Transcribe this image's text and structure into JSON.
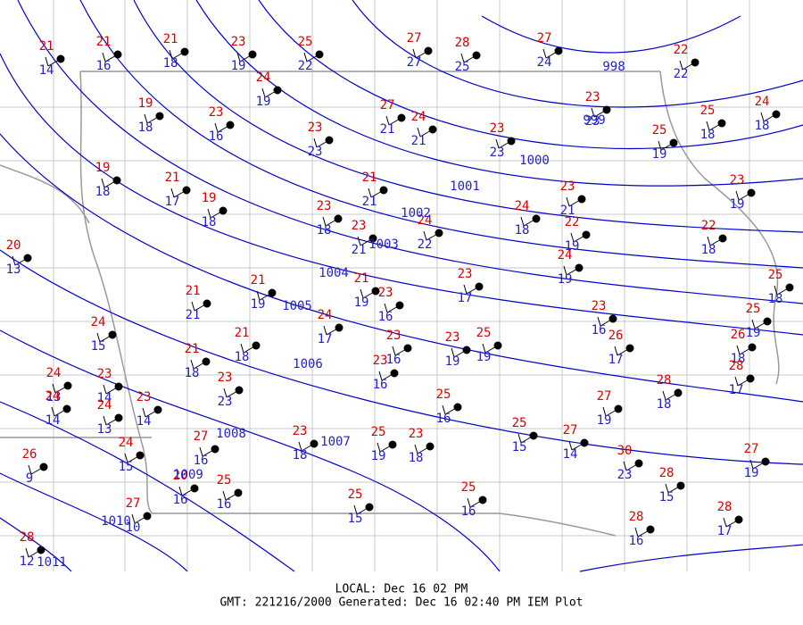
{
  "stations": [
    {
      "temp": 21,
      "dew": 14
    },
    {
      "temp": 21,
      "dew": 16
    },
    {
      "temp": 21,
      "dew": 18
    },
    {
      "temp": 23,
      "dew": 19
    },
    {
      "temp": 25,
      "dew": 22
    },
    {
      "temp": 27,
      "dew": 27
    },
    {
      "temp": 28,
      "dew": 25
    },
    {
      "temp": 27,
      "dew": 24
    },
    {
      "temp": 22,
      "dew": 22
    },
    {
      "temp": 24,
      "dew": 19
    },
    {
      "temp": 19,
      "dew": 18
    },
    {
      "temp": 23,
      "dew": 16
    },
    {
      "temp": 23,
      "dew": 23
    },
    {
      "temp": 27,
      "dew": 21
    },
    {
      "temp": 24,
      "dew": 21
    },
    {
      "temp": 23,
      "dew": 23
    },
    {
      "temp": 23,
      "dew": 23
    },
    {
      "temp": 25,
      "dew": 19
    },
    {
      "temp": 25,
      "dew": 18
    },
    {
      "temp": 24,
      "dew": 18
    },
    {
      "temp": 19,
      "dew": 18
    },
    {
      "temp": 21,
      "dew": 17
    },
    {
      "temp": 19,
      "dew": 18
    },
    {
      "temp": 21,
      "dew": 21
    },
    {
      "temp": 23,
      "dew": 21
    },
    {
      "temp": 23,
      "dew": 19
    },
    {
      "temp": 23,
      "dew": 18
    },
    {
      "temp": 23,
      "dew": 21
    },
    {
      "temp": 24,
      "dew": 22
    },
    {
      "temp": 24,
      "dew": 18
    },
    {
      "temp": 22,
      "dew": 19
    },
    {
      "temp": 22,
      "dew": 18
    },
    {
      "temp": 20,
      "dew": 13
    },
    {
      "temp": 24,
      "dew": 19
    },
    {
      "temp": 23,
      "dew": 17
    },
    {
      "temp": 21,
      "dew": 19
    },
    {
      "temp": 21,
      "dew": 21
    },
    {
      "temp": 21,
      "dew": 19
    },
    {
      "temp": 23,
      "dew": 16
    },
    {
      "temp": 25,
      "dew": 18
    },
    {
      "temp": 24,
      "dew": 17
    },
    {
      "temp": 24,
      "dew": 15
    },
    {
      "temp": 23,
      "dew": 16
    },
    {
      "temp": 21,
      "dew": 18
    },
    {
      "temp": 23,
      "dew": 16
    },
    {
      "temp": 25,
      "dew": 19
    },
    {
      "temp": 21,
      "dew": 18
    },
    {
      "temp": 23,
      "dew": 19
    },
    {
      "temp": 25,
      "dew": 19
    },
    {
      "temp": 26,
      "dew": 17
    },
    {
      "temp": 26,
      "dew": 18
    },
    {
      "temp": 23,
      "dew": 16
    },
    {
      "temp": 24,
      "dew": 13
    },
    {
      "temp": 23,
      "dew": 14
    },
    {
      "temp": 28,
      "dew": 17
    },
    {
      "temp": 23,
      "dew": 23
    },
    {
      "temp": 23,
      "dew": 14
    },
    {
      "temp": 24,
      "dew": 13
    },
    {
      "temp": 24,
      "dew": 14
    },
    {
      "temp": 28,
      "dew": 18
    },
    {
      "temp": 25,
      "dew": 16
    },
    {
      "temp": 27,
      "dew": 19
    },
    {
      "temp": 26,
      "dew": 9
    },
    {
      "temp": 24,
      "dew": 15
    },
    {
      "temp": 27,
      "dew": 16
    },
    {
      "temp": 23,
      "dew": 18
    },
    {
      "temp": 25,
      "dew": 19
    },
    {
      "temp": 23,
      "dew": 18
    },
    {
      "temp": 25,
      "dew": 15
    },
    {
      "temp": 27,
      "dew": 14
    },
    {
      "temp": 30,
      "dew": 23
    },
    {
      "temp": 27,
      "dew": 19
    },
    {
      "temp": 20,
      "dew": 16
    },
    {
      "temp": 25,
      "dew": 16
    },
    {
      "temp": 27,
      "dew": 10
    },
    {
      "temp": 25,
      "dew": 15
    },
    {
      "temp": 25,
      "dew": 16
    },
    {
      "temp": 28,
      "dew": 15
    },
    {
      "temp": 28,
      "dew": 16
    },
    {
      "temp": 28,
      "dew": 17
    },
    {
      "temp": 28,
      "dew": 12
    }
  ],
  "isobars": [
    998,
    999,
    1000,
    1001,
    1002,
    1003,
    1004,
    1005,
    1006,
    1007,
    1008,
    1009,
    1010,
    1011
  ],
  "footer": {
    "local": "LOCAL: Dec 16 02 PM",
    "gmt": "GMT: 221216/2000 Generated: Dec 16 02:40 PM IEM Plot"
  }
}
